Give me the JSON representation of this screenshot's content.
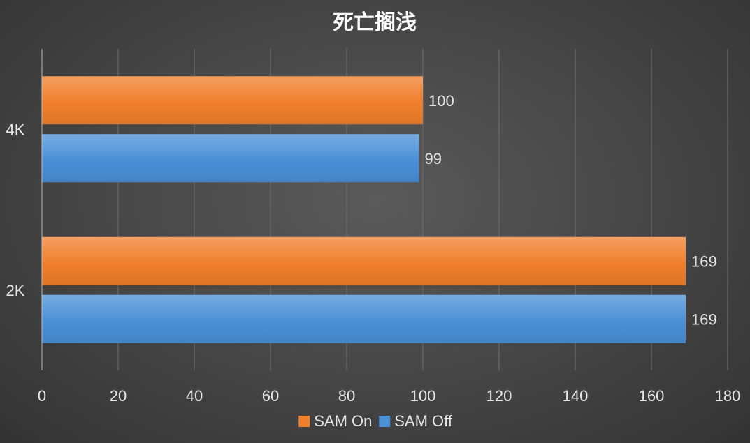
{
  "chart_data": {
    "type": "bar",
    "orientation": "horizontal",
    "title": "死亡搁浅",
    "categories": [
      "4K",
      "2K"
    ],
    "series": [
      {
        "name": "SAM On",
        "color": "#f07f2c",
        "values": [
          100,
          169
        ]
      },
      {
        "name": "SAM Off",
        "color": "#4a90d6",
        "values": [
          99,
          169
        ]
      }
    ],
    "xlabel": "",
    "ylabel": "",
    "xlim": [
      0,
      180
    ],
    "x_ticks": [
      0,
      20,
      40,
      60,
      80,
      100,
      120,
      140,
      160,
      180
    ],
    "grid": true,
    "legend_position": "bottom",
    "data_labels": true
  }
}
